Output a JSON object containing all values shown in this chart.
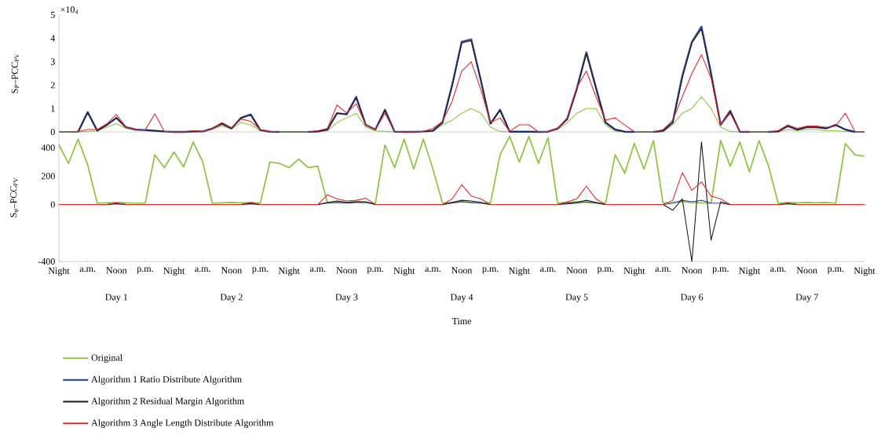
{
  "chart_data": [
    {
      "type": "line",
      "ylabel": "S$_{P}$–PCC$_{PV}$",
      "annotations": [
        "×10$_{4}$"
      ],
      "ylim": [
        0,
        5
      ],
      "yticks": [
        0,
        1,
        2,
        3,
        4,
        5
      ],
      "tick_labels": "y",
      "categories": [
        null,
        null,
        null,
        null,
        null,
        null,
        null,
        null,
        null,
        null,
        null,
        null,
        null,
        null,
        null,
        null,
        null,
        null,
        null,
        null,
        null,
        null,
        null,
        null,
        null,
        null,
        null,
        null,
        null,
        null,
        null,
        null,
        null,
        null,
        null,
        null,
        null,
        null,
        null,
        null,
        null,
        null,
        null,
        null,
        null,
        null,
        null,
        null,
        null,
        null,
        null,
        null,
        null,
        null,
        null,
        null,
        null,
        null,
        null,
        null,
        null,
        null,
        null,
        null,
        null,
        null,
        null,
        null,
        null,
        null,
        null,
        null,
        null,
        null,
        null,
        null,
        null,
        null,
        null,
        null,
        null,
        null,
        null,
        null,
        null
      ],
      "series": [
        {
          "color": "#8cc63e",
          "values": [
            0,
            0,
            0,
            0.02,
            0.05,
            0.2,
            0.35,
            0.15,
            0.08,
            0.05,
            0.02,
            0,
            0,
            0,
            0,
            0,
            0.1,
            0.25,
            0.12,
            0.4,
            0.3,
            0.05,
            0,
            0,
            0,
            0,
            0,
            0,
            0.05,
            0.4,
            0.6,
            0.8,
            0.2,
            0.05,
            0.02,
            0,
            0,
            0,
            0,
            0.02,
            0.3,
            0.5,
            0.8,
            1.0,
            0.8,
            0.2,
            0.02,
            0,
            0,
            0,
            0,
            0,
            0.1,
            0.4,
            0.8,
            1.0,
            1.0,
            0.3,
            0.02,
            0,
            0,
            0,
            0,
            0,
            0.3,
            0.8,
            1.0,
            1.5,
            1.0,
            0.2,
            0.02,
            0,
            0,
            0,
            0,
            0,
            0.1,
            0.05,
            0.1,
            0.1,
            0.05,
            0.05,
            0.02,
            0,
            0
          ]
        },
        {
          "color": "#3b4ba0",
          "values": [
            null,
            null,
            0,
            0.85,
            0.05,
            0.3,
            0.6,
            0.2,
            0.1,
            0.08,
            0.05,
            0.02,
            0,
            0,
            0.02,
            0.02,
            0.15,
            0.35,
            0.15,
            0.6,
            0.75,
            0.08,
            0.01,
            0,
            null,
            null,
            0,
            0.02,
            0.1,
            0.8,
            0.75,
            1.5,
            0.3,
            0.1,
            0.95,
            0.01,
            0,
            0,
            0.02,
            0.05,
            0.4,
            2.0,
            3.85,
            3.95,
            2.2,
            0.35,
            0.95,
            0.01,
            0.01,
            0.01,
            0,
            0.01,
            0.15,
            0.55,
            1.85,
            3.4,
            1.9,
            0.4,
            0.1,
            0.01,
            0,
            null,
            0,
            0.05,
            0.4,
            2.4,
            3.85,
            4.5,
            2.5,
            0.3,
            0.9,
            0.01,
            0,
            null,
            0,
            0.02,
            0.25,
            0.1,
            0.2,
            0.2,
            0.15,
            0.3,
            0.1,
            0,
            null
          ]
        },
        {
          "color": "#1a1a1a",
          "values": [
            0,
            0,
            0,
            0.82,
            0.05,
            0.3,
            0.6,
            0.2,
            0.1,
            0.08,
            0.05,
            0.02,
            0,
            0,
            0.02,
            0.02,
            0.15,
            0.35,
            0.15,
            0.6,
            0.72,
            0.08,
            0.01,
            0,
            0,
            0,
            0,
            0.02,
            0.1,
            0.8,
            0.75,
            1.45,
            0.3,
            0.1,
            0.92,
            0.01,
            0,
            0,
            0.02,
            0.05,
            0.4,
            1.95,
            3.8,
            3.9,
            2.2,
            0.35,
            0.92,
            0.01,
            0.01,
            0.01,
            0,
            0.01,
            0.15,
            0.55,
            1.8,
            3.35,
            1.85,
            0.4,
            0.1,
            0.01,
            0,
            0,
            0,
            0.05,
            0.4,
            2.3,
            3.8,
            4.4,
            2.45,
            0.3,
            0.88,
            0.01,
            0,
            0,
            0,
            0.02,
            0.25,
            0.1,
            0.2,
            0.2,
            0.15,
            0.3,
            0.1,
            0,
            0
          ]
        },
        {
          "color": "#e8262a",
          "values": [
            null,
            0,
            0.02,
            0.1,
            0.1,
            0.35,
            0.74,
            0.2,
            0.1,
            0.08,
            0.77,
            0.02,
            0,
            0,
            0.05,
            0.02,
            0.15,
            0.4,
            0.18,
            0.55,
            0.45,
            0.1,
            0.02,
            0,
            null,
            null,
            0,
            0.05,
            0.15,
            1.15,
            0.8,
            1.2,
            0.3,
            0.1,
            0.8,
            0.02,
            0,
            0,
            0.02,
            0.15,
            0.45,
            1.3,
            2.6,
            3.0,
            1.8,
            0.4,
            0.6,
            0.02,
            0.3,
            0.3,
            0.01,
            0.02,
            0.15,
            0.6,
            1.9,
            2.6,
            1.5,
            0.5,
            0.6,
            0.3,
            0.01,
            null,
            0,
            0.1,
            0.5,
            1.5,
            2.5,
            3.3,
            2.3,
            0.3,
            0.8,
            0.02,
            0,
            null,
            0,
            0.05,
            0.3,
            0.15,
            0.25,
            0.25,
            0.2,
            0.25,
            0.8,
            0.02,
            0
          ]
        }
      ]
    },
    {
      "type": "line",
      "ylabel": "S$_{φ}$–PCC$_{PV}$",
      "xlabel": "Time",
      "annotations": [
        "Day 1",
        "Day 2",
        "Day 3",
        "Day 4",
        "Day 5",
        "Day 6",
        "Day 7"
      ],
      "ylim": [
        -400,
        500
      ],
      "yticks": [
        -400,
        0,
        200,
        400
      ],
      "legend": "bottom left",
      "categories": [
        "Night",
        null,
        null,
        "a.m.",
        null,
        null,
        "Noon",
        null,
        null,
        "p.m.",
        null,
        null,
        "Night",
        null,
        null,
        "a.m.",
        null,
        null,
        "Noon",
        null,
        null,
        "p.m.",
        null,
        null,
        "Night",
        null,
        null,
        "a.m.",
        null,
        null,
        "Noon",
        null,
        null,
        "p.m.",
        null,
        null,
        "Night",
        null,
        null,
        "a.m.",
        null,
        null,
        "Noon",
        null,
        null,
        "p.m.",
        null,
        null,
        "Night",
        null,
        null,
        "a.m.",
        null,
        null,
        "Noon",
        null,
        null,
        "p.m.",
        null,
        null,
        "Night",
        null,
        null,
        "a.m.",
        null,
        null,
        "Noon",
        null,
        null,
        "p.m.",
        null,
        null,
        "Night",
        null,
        null,
        "a.m.",
        null,
        null,
        "Noon",
        null,
        null,
        "p.m.",
        null,
        null,
        "Night"
      ],
      "series": [
        {
          "name": "Original",
          "color": "#8cc63e",
          "values": [
            420,
            290,
            460,
            280,
            10,
            12,
            15,
            12,
            10,
            10,
            350,
            260,
            370,
            265,
            440,
            300,
            10,
            12,
            15,
            12,
            15,
            10,
            300,
            290,
            260,
            320,
            260,
            270,
            10,
            20,
            15,
            20,
            15,
            10,
            420,
            260,
            460,
            250,
            460,
            250,
            10,
            15,
            20,
            15,
            12,
            10,
            350,
            480,
            300,
            480,
            290,
            470,
            10,
            15,
            20,
            15,
            12,
            10,
            350,
            220,
            430,
            250,
            450,
            10,
            15,
            20,
            15,
            12,
            10,
            450,
            270,
            440,
            230,
            450,
            270,
            10,
            15,
            12,
            15,
            12,
            15,
            10,
            430,
            350,
            340
          ]
        },
        {
          "name": "Algorithm 1 Ratio Distribute Algorithm",
          "color": "#3b4ba0",
          "values": [
            null,
            null,
            null,
            null,
            null,
            0,
            5,
            0,
            null,
            null,
            null,
            null,
            null,
            null,
            null,
            null,
            null,
            null,
            null,
            0,
            5,
            0,
            null,
            null,
            null,
            null,
            null,
            0,
            10,
            15,
            10,
            15,
            15,
            0,
            null,
            null,
            null,
            null,
            null,
            null,
            0,
            10,
            20,
            15,
            10,
            0,
            null,
            null,
            null,
            null,
            null,
            null,
            0,
            5,
            10,
            20,
            10,
            0,
            null,
            null,
            null,
            null,
            null,
            0,
            10,
            30,
            20,
            30,
            10,
            10,
            0,
            null,
            null,
            null,
            null,
            0,
            5,
            0,
            null,
            null,
            null,
            null,
            null,
            null,
            null
          ]
        },
        {
          "name": "Algorithm 2 Residual Margin Algorithm",
          "color": "#1a1a1a",
          "values": [
            null,
            null,
            null,
            null,
            null,
            0,
            8,
            0,
            null,
            null,
            null,
            null,
            null,
            null,
            null,
            null,
            null,
            null,
            null,
            0,
            8,
            0,
            null,
            null,
            null,
            null,
            null,
            0,
            15,
            25,
            15,
            20,
            20,
            0,
            null,
            null,
            null,
            null,
            null,
            null,
            0,
            15,
            30,
            25,
            15,
            0,
            null,
            null,
            null,
            null,
            null,
            null,
            0,
            10,
            15,
            30,
            15,
            0,
            null,
            null,
            null,
            null,
            null,
            0,
            -40,
            40,
            -400,
            440,
            -250,
            20,
            0,
            null,
            null,
            null,
            null,
            0,
            8,
            0,
            null,
            null,
            null,
            null,
            null,
            null,
            null
          ]
        },
        {
          "name": "Algorithm 3 Angle Length Distribute Algorithm",
          "color": "#e8262a",
          "values": [
            0,
            0,
            0,
            0,
            0,
            0,
            12,
            0,
            0,
            0,
            0,
            0,
            0,
            0,
            0,
            0,
            0,
            0,
            0,
            0,
            15,
            0,
            0,
            0,
            0,
            0,
            0,
            0,
            70,
            40,
            25,
            30,
            45,
            0,
            0,
            0,
            0,
            0,
            0,
            0,
            0,
            40,
            140,
            60,
            40,
            0,
            0,
            0,
            0,
            0,
            0,
            0,
            0,
            20,
            40,
            130,
            40,
            0,
            0,
            0,
            0,
            0,
            0,
            0,
            30,
            225,
            100,
            160,
            60,
            40,
            0,
            0,
            0,
            0,
            0,
            0,
            10,
            0,
            0,
            0,
            0,
            0,
            0,
            0,
            0
          ]
        }
      ]
    }
  ]
}
